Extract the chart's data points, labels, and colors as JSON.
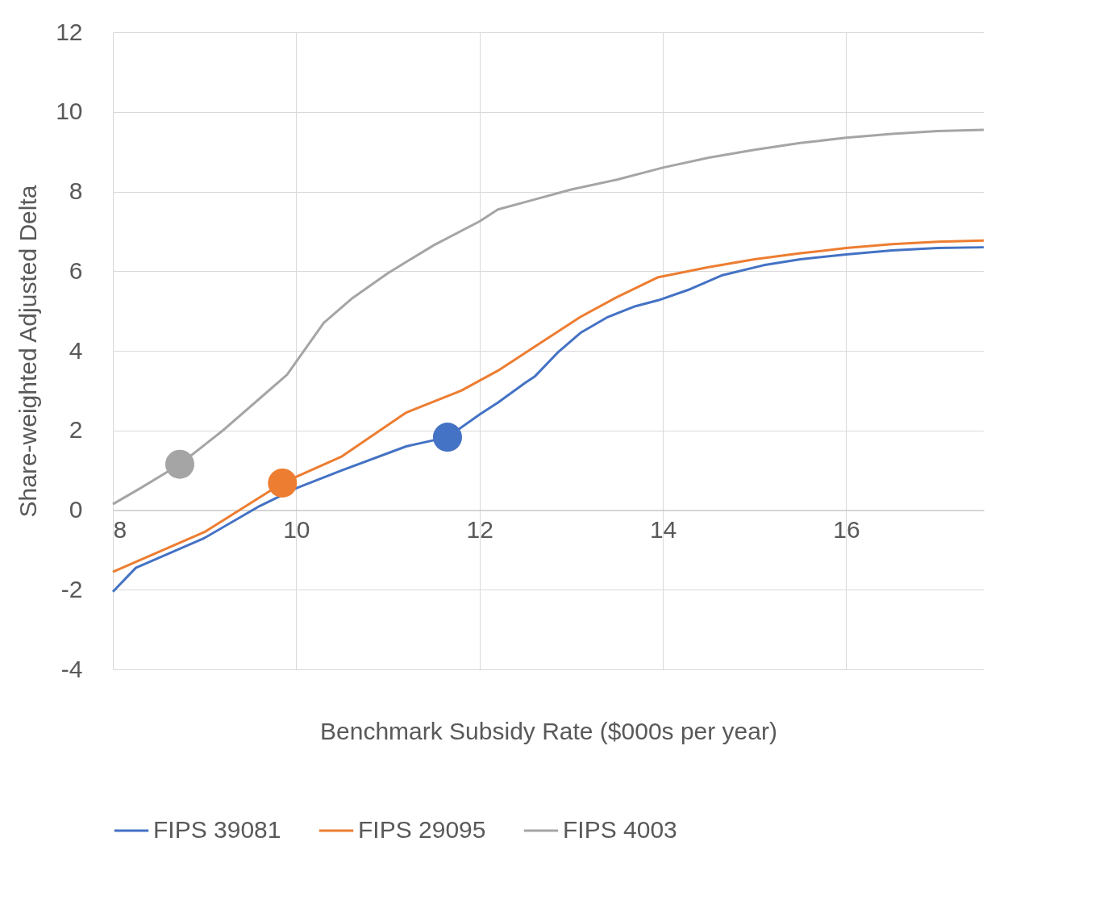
{
  "chart_data": {
    "type": "line",
    "xlabel": "Benchmark Subsidy Rate ($000s per year)",
    "ylabel": "Share-weighted Adjusted Delta",
    "xlim": [
      8,
      17.5
    ],
    "xticks": [
      8,
      10,
      12,
      14,
      16
    ],
    "ylim": [
      -4,
      12
    ],
    "yticks": [
      -4,
      -2,
      0,
      2,
      4,
      6,
      8,
      10,
      12
    ],
    "grid": true,
    "legend": "bottom",
    "marker": "none",
    "line_style": "solid",
    "series": [
      {
        "name": "FIPS 39081",
        "color": "#4472c4",
        "x": [
          8,
          8.25,
          9,
          9.6,
          10,
          10.5,
          11.2,
          11.65,
          12,
          12.2,
          12.5,
          12.6,
          12.85,
          13.1,
          13.4,
          13.7,
          13.95,
          14.3,
          14.65,
          15.1,
          15.5,
          16,
          16.5,
          17,
          17.5
        ],
        "values": [
          -2.05,
          -1.45,
          -0.7,
          0.1,
          0.55,
          1.0,
          1.6,
          1.83,
          2.4,
          2.7,
          3.2,
          3.35,
          3.95,
          4.45,
          4.85,
          5.12,
          5.27,
          5.55,
          5.9,
          6.15,
          6.3,
          6.42,
          6.52,
          6.58,
          6.6
        ]
      },
      {
        "name": "FIPS 29095",
        "color": "#ed7d31",
        "x": [
          8,
          9,
          9.85,
          10.5,
          11.2,
          11.8,
          12.2,
          12.6,
          13.1,
          13.5,
          13.95,
          14.5,
          15,
          15.5,
          16,
          16.5,
          17,
          17.5
        ],
        "values": [
          -1.55,
          -0.55,
          0.68,
          1.35,
          2.45,
          3.0,
          3.5,
          4.1,
          4.85,
          5.35,
          5.85,
          6.1,
          6.3,
          6.45,
          6.58,
          6.68,
          6.74,
          6.77
        ]
      },
      {
        "name": "FIPS 4003",
        "color": "#a5a5a5",
        "x": [
          8,
          8.3,
          8.73,
          9.2,
          9.6,
          9.9,
          10.3,
          10.6,
          11,
          11.5,
          12,
          12.2,
          12.6,
          13,
          13.5,
          14,
          14.5,
          15,
          15.5,
          16,
          16.5,
          17,
          17.5
        ],
        "values": [
          0.15,
          0.55,
          1.15,
          2.0,
          2.8,
          3.4,
          4.7,
          5.3,
          5.95,
          6.65,
          7.25,
          7.55,
          7.8,
          8.05,
          8.3,
          8.6,
          8.85,
          9.05,
          9.22,
          9.35,
          9.45,
          9.52,
          9.55
        ]
      },
      {
        "type": "scatter",
        "marker": "circle",
        "color": "#a5a5a5",
        "x": [
          8.73
        ],
        "values": [
          1.15
        ]
      },
      {
        "type": "scatter",
        "marker": "circle",
        "color": "#ed7d31",
        "x": [
          9.85
        ],
        "values": [
          0.68
        ]
      },
      {
        "type": "scatter",
        "marker": "circle",
        "color": "#4472c4",
        "x": [
          11.65
        ],
        "values": [
          1.83
        ]
      }
    ]
  }
}
